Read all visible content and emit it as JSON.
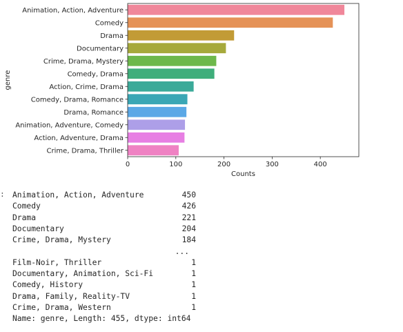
{
  "chart_data": {
    "type": "bar",
    "orientation": "horizontal",
    "categories": [
      "Animation, Action, Adventure",
      "Comedy",
      "Drama",
      "Documentary",
      "Crime, Drama, Mystery",
      "Comedy, Drama",
      "Action, Crime, Drama",
      "Comedy, Drama, Romance",
      "Drama, Romance",
      "Animation, Adventure, Comedy",
      "Action, Adventure, Drama",
      "Crime, Drama, Thriller"
    ],
    "values": [
      450,
      426,
      221,
      204,
      184,
      180,
      137,
      124,
      122,
      119,
      118,
      106
    ],
    "colors": [
      "#f0879a",
      "#e59257",
      "#c29b36",
      "#a6a93b",
      "#6db84b",
      "#3fae7b",
      "#3baa99",
      "#3aa7b5",
      "#5ba8e6",
      "#ad9fe8",
      "#e77fe3",
      "#ef82c3"
    ],
    "xlabel": "Counts",
    "ylabel": "genre",
    "xlim": [
      0,
      480
    ],
    "xticks": [
      0,
      100,
      200,
      300,
      400
    ],
    "grid": false
  },
  "output": {
    "prompt": ":",
    "top_rows": [
      {
        "label": "Animation, Action, Adventure",
        "value": "450"
      },
      {
        "label": "Comedy",
        "value": "426"
      },
      {
        "label": "Drama",
        "value": "221"
      },
      {
        "label": "Documentary",
        "value": "204"
      },
      {
        "label": "Crime, Drama, Mystery",
        "value": "184"
      }
    ],
    "ellipsis": "...",
    "bottom_rows": [
      {
        "label": "Film-Noir, Thriller",
        "value": "1"
      },
      {
        "label": "Documentary, Animation, Sci-Fi",
        "value": "1"
      },
      {
        "label": "Comedy, History",
        "value": "1"
      },
      {
        "label": "Drama, Family, Reality-TV",
        "value": "1"
      },
      {
        "label": "Crime, Drama, Western",
        "value": "1"
      }
    ],
    "footer": "Name: genre, Length: 455, dtype: int64"
  }
}
